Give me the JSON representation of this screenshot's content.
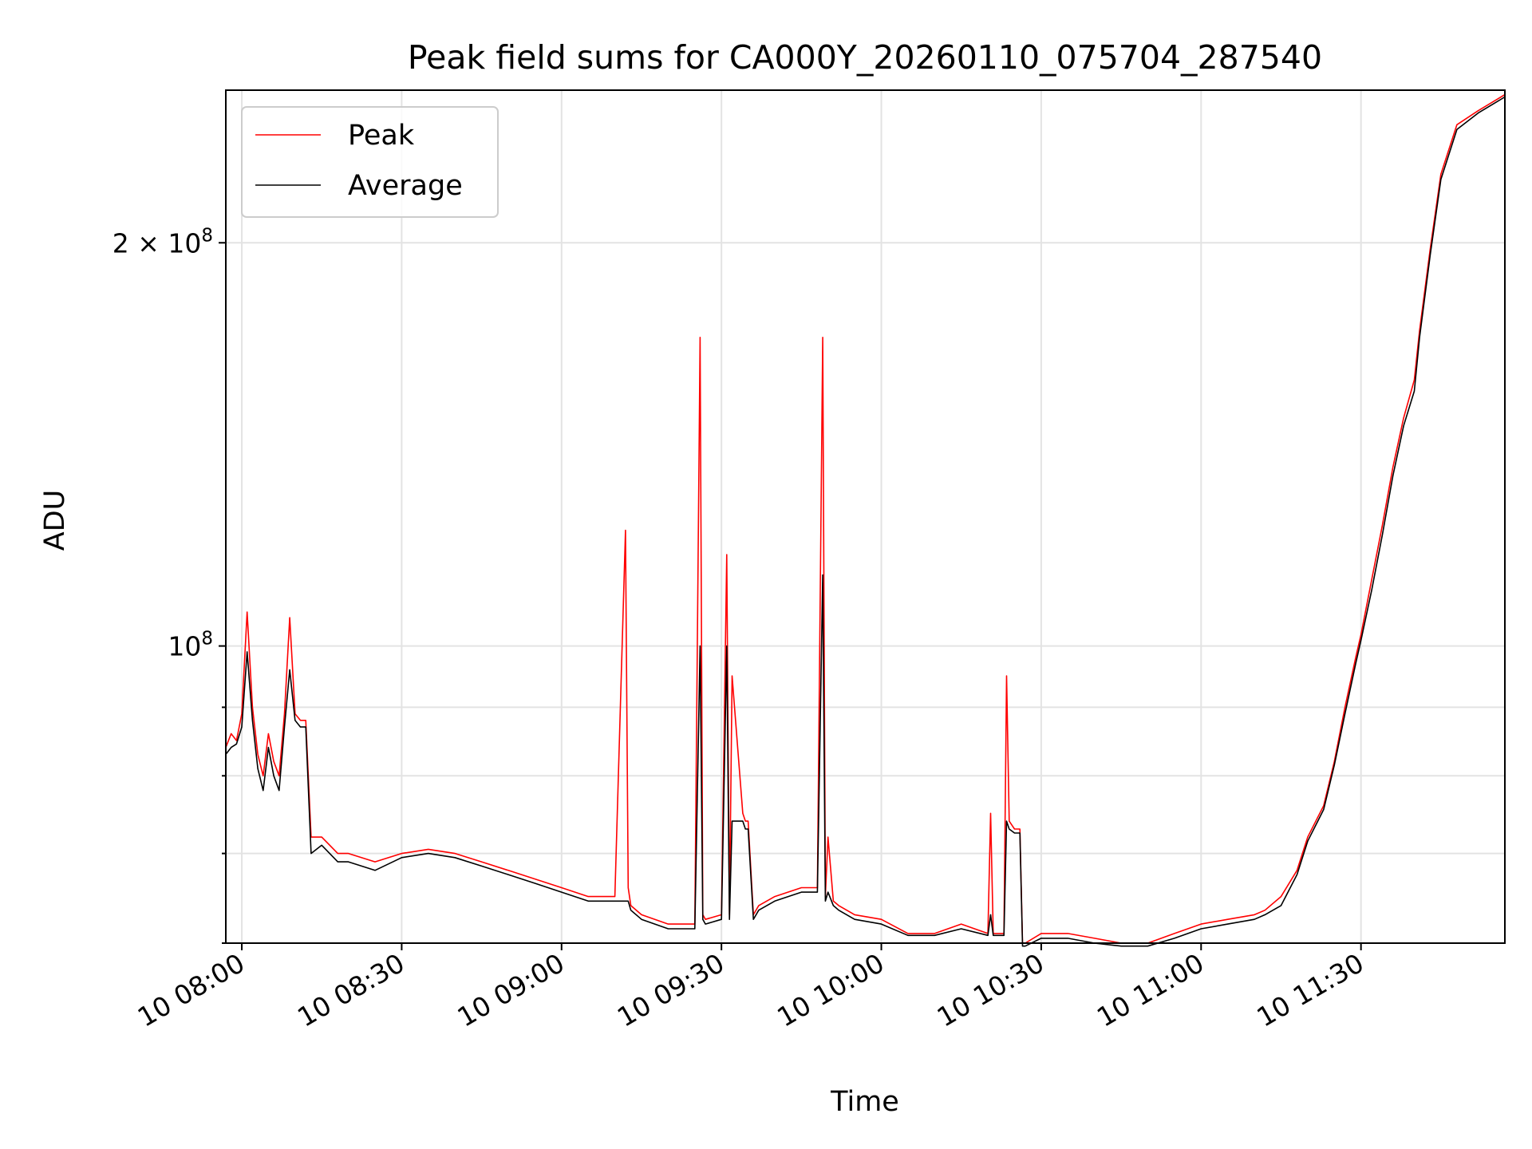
{
  "chart_data": {
    "type": "line",
    "title": "Peak field sums for CA000Y_20260110_075704_287540",
    "xlabel": "Time",
    "ylabel": "ADU",
    "yscale": "log",
    "x_unit": "time of day on 10 Jan 2026 (HH:MM)",
    "xlim": [
      "07:57",
      "11:57"
    ],
    "ylim": [
      60000000,
      260000000
    ],
    "x_ticks": [
      "10 08:00",
      "10 08:30",
      "10 09:00",
      "10 09:30",
      "10 10:00",
      "10 10:30",
      "10 11:00",
      "10 11:30"
    ],
    "x_tick_times": [
      "08:00",
      "08:30",
      "09:00",
      "09:30",
      "10:00",
      "10:30",
      "11:00",
      "11:30"
    ],
    "y_ticks": [
      {
        "value": 200000000,
        "base": "2 × 10",
        "exp": "8"
      },
      {
        "value": 100000000,
        "base": "10",
        "exp": "8"
      }
    ],
    "y_minor_ticks": [
      60000000,
      70000000,
      80000000,
      90000000
    ],
    "grid": true,
    "legend_position": "top-left",
    "series": [
      {
        "name": "Peak",
        "color": "#ff0000",
        "x": [
          "07:57",
          "07:58",
          "07:59",
          "08:00",
          "08:01",
          "08:02",
          "08:03",
          "08:04",
          "08:05",
          "08:06",
          "08:07",
          "08:08",
          "08:09",
          "08:10",
          "08:11",
          "08:12",
          "08:13",
          "08:15",
          "08:18",
          "08:20",
          "08:25",
          "08:30",
          "08:35",
          "08:40",
          "08:45",
          "08:50",
          "08:55",
          "09:00",
          "09:05",
          "09:10",
          "09:12",
          "09:12.5",
          "09:13",
          "09:15",
          "09:20",
          "09:25",
          "09:26",
          "09:26.5",
          "09:27",
          "09:30",
          "09:31",
          "09:31.5",
          "09:32",
          "09:34",
          "09:34.5",
          "09:35",
          "09:36",
          "09:37",
          "09:40",
          "09:45",
          "09:48",
          "09:49",
          "09:49.5",
          "09:50",
          "09:51",
          "09:52",
          "09:55",
          "10:00",
          "10:05",
          "10:10",
          "10:15",
          "10:20",
          "10:20.5",
          "10:21",
          "10:23",
          "10:23.5",
          "10:24",
          "10:25",
          "10:26",
          "10:26.5",
          "10:27",
          "10:30",
          "10:35",
          "10:40",
          "10:45",
          "10:50",
          "10:55",
          "11:00",
          "11:05",
          "11:10",
          "11:12",
          "11:15",
          "11:18",
          "11:20",
          "11:23",
          "11:25",
          "11:27",
          "11:29",
          "11:30",
          "11:32",
          "11:34",
          "11:36",
          "11:38",
          "11:40",
          "11:41",
          "11:43",
          "11:45",
          "11:48",
          "11:52",
          "11:57"
        ],
        "y": [
          84000000,
          86000000,
          85000000,
          89000000,
          106000000,
          90000000,
          83000000,
          80000000,
          86000000,
          82000000,
          80000000,
          89000000,
          105000000,
          89000000,
          88000000,
          88000000,
          72000000,
          72000000,
          70000000,
          70000000,
          69000000,
          70000000,
          70500000,
          70000000,
          69000000,
          68000000,
          67000000,
          66000000,
          65000000,
          65000000,
          122000000,
          66000000,
          64000000,
          63000000,
          62000000,
          62000000,
          170000000,
          63000000,
          62500000,
          63000000,
          117000000,
          63000000,
          95000000,
          75000000,
          74000000,
          74000000,
          63000000,
          64000000,
          65000000,
          66000000,
          66000000,
          170000000,
          65000000,
          72000000,
          64500000,
          64000000,
          63000000,
          62500000,
          61000000,
          61000000,
          62000000,
          61000000,
          75000000,
          61000000,
          61000000,
          95000000,
          74000000,
          73000000,
          73000000,
          60000000,
          60000000,
          61000000,
          61000000,
          60500000,
          60000000,
          60000000,
          61000000,
          62000000,
          62500000,
          63000000,
          63500000,
          65000000,
          68000000,
          72000000,
          76000000,
          82000000,
          90000000,
          98000000,
          102000000,
          112000000,
          123000000,
          136000000,
          148000000,
          158000000,
          172000000,
          198000000,
          225000000,
          245000000,
          251000000,
          258000000
        ]
      },
      {
        "name": "Average",
        "color": "#000000",
        "x": [
          "07:57",
          "07:58",
          "07:59",
          "08:00",
          "08:01",
          "08:02",
          "08:03",
          "08:04",
          "08:05",
          "08:06",
          "08:07",
          "08:08",
          "08:09",
          "08:10",
          "08:11",
          "08:12",
          "08:13",
          "08:15",
          "08:18",
          "08:20",
          "08:25",
          "08:30",
          "08:35",
          "08:40",
          "08:45",
          "08:50",
          "08:55",
          "09:00",
          "09:05",
          "09:10",
          "09:12",
          "09:12.5",
          "09:13",
          "09:15",
          "09:20",
          "09:25",
          "09:26",
          "09:26.5",
          "09:27",
          "09:30",
          "09:31",
          "09:31.5",
          "09:32",
          "09:34",
          "09:34.5",
          "09:35",
          "09:36",
          "09:37",
          "09:40",
          "09:45",
          "09:48",
          "09:49",
          "09:49.5",
          "09:50",
          "09:51",
          "09:52",
          "09:55",
          "10:00",
          "10:05",
          "10:10",
          "10:15",
          "10:20",
          "10:20.5",
          "10:21",
          "10:23",
          "10:23.5",
          "10:24",
          "10:25",
          "10:26",
          "10:26.5",
          "10:27",
          "10:30",
          "10:35",
          "10:40",
          "10:45",
          "10:50",
          "10:55",
          "11:00",
          "11:05",
          "11:10",
          "11:12",
          "11:15",
          "11:18",
          "11:20",
          "11:23",
          "11:25",
          "11:27",
          "11:29",
          "11:30",
          "11:32",
          "11:34",
          "11:36",
          "11:38",
          "11:40",
          "11:41",
          "11:43",
          "11:45",
          "11:48",
          "11:52",
          "11:57"
        ],
        "y": [
          83000000,
          84000000,
          84500000,
          87000000,
          99000000,
          88000000,
          81000000,
          78000000,
          84000000,
          80000000,
          78000000,
          87000000,
          96000000,
          88000000,
          87000000,
          87000000,
          70000000,
          71000000,
          69000000,
          69000000,
          68000000,
          69500000,
          70000000,
          69500000,
          68500000,
          67500000,
          66500000,
          65500000,
          64500000,
          64500000,
          64500000,
          64500000,
          63500000,
          62500000,
          61500000,
          61500000,
          100000000,
          62500000,
          62000000,
          62500000,
          100000000,
          62500000,
          74000000,
          74000000,
          73000000,
          73000000,
          62500000,
          63500000,
          64500000,
          65500000,
          65500000,
          113000000,
          64500000,
          65500000,
          64000000,
          63500000,
          62500000,
          62000000,
          60800000,
          60800000,
          61500000,
          60800000,
          63000000,
          60800000,
          60800000,
          74000000,
          73000000,
          72500000,
          72500000,
          59700000,
          59700000,
          60500000,
          60500000,
          60000000,
          59700000,
          59700000,
          60500000,
          61500000,
          62000000,
          62500000,
          63000000,
          64000000,
          67500000,
          71500000,
          75500000,
          81500000,
          89000000,
          97000000,
          101000000,
          110000000,
          121000000,
          134000000,
          146000000,
          155000000,
          170000000,
          196000000,
          223000000,
          243000000,
          250000000,
          257000000
        ]
      }
    ]
  }
}
